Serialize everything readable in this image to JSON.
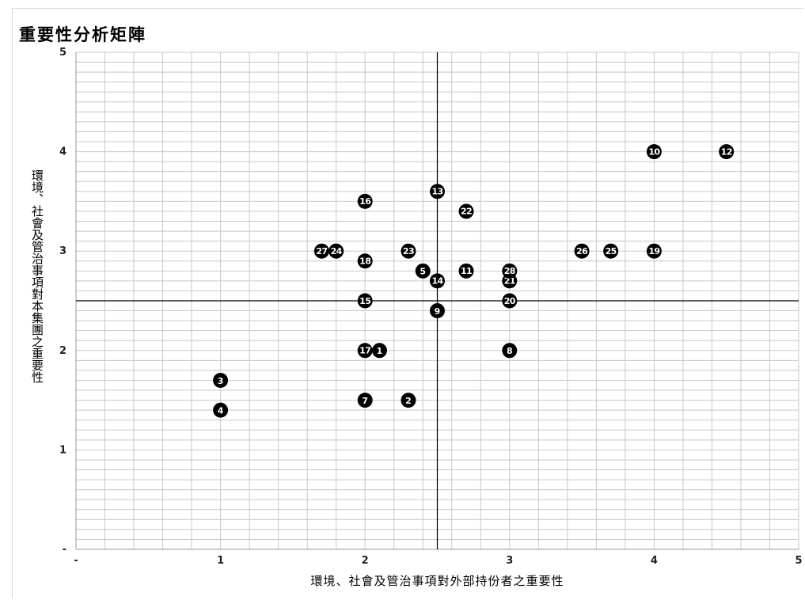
{
  "chart_data": {
    "type": "scatter",
    "title": "重要性分析矩陣",
    "xlabel": "環境、社會及管治事項對外部持份者之重要性",
    "ylabel": "環境、社會及管治事項對本集團之重要性",
    "xlim": [
      0,
      5
    ],
    "ylim": [
      0,
      5
    ],
    "x_ticks": [
      "-",
      "1",
      "2",
      "3",
      "4",
      "5"
    ],
    "y_ticks": [
      "-",
      "1",
      "2",
      "3",
      "4",
      "5"
    ],
    "grid": true,
    "reference_lines": {
      "x": 2.5,
      "y": 2.5
    },
    "marker_color": "#000000",
    "points": [
      {
        "label": "1",
        "x": 2.1,
        "y": 2.0
      },
      {
        "label": "2",
        "x": 2.3,
        "y": 1.5
      },
      {
        "label": "3",
        "x": 1.0,
        "y": 1.7
      },
      {
        "label": "4",
        "x": 1.0,
        "y": 1.4
      },
      {
        "label": "5",
        "x": 2.4,
        "y": 2.8
      },
      {
        "label": "7",
        "x": 2.0,
        "y": 1.5
      },
      {
        "label": "8",
        "x": 3.0,
        "y": 2.0
      },
      {
        "label": "9",
        "x": 2.5,
        "y": 2.4
      },
      {
        "label": "10",
        "x": 4.0,
        "y": 4.0
      },
      {
        "label": "11",
        "x": 2.7,
        "y": 2.8
      },
      {
        "label": "12",
        "x": 4.5,
        "y": 4.0
      },
      {
        "label": "13",
        "x": 2.5,
        "y": 3.6
      },
      {
        "label": "14",
        "x": 2.5,
        "y": 2.7
      },
      {
        "label": "15",
        "x": 2.0,
        "y": 2.5
      },
      {
        "label": "16",
        "x": 2.0,
        "y": 3.5
      },
      {
        "label": "17",
        "x": 2.0,
        "y": 2.0
      },
      {
        "label": "18",
        "x": 2.0,
        "y": 2.9
      },
      {
        "label": "19",
        "x": 4.0,
        "y": 3.0
      },
      {
        "label": "20",
        "x": 3.0,
        "y": 2.5
      },
      {
        "label": "21",
        "x": 3.0,
        "y": 2.7
      },
      {
        "label": "22",
        "x": 2.7,
        "y": 3.4
      },
      {
        "label": "23",
        "x": 2.3,
        "y": 3.0
      },
      {
        "label": "24",
        "x": 1.8,
        "y": 3.0
      },
      {
        "label": "25",
        "x": 3.7,
        "y": 3.0
      },
      {
        "label": "26",
        "x": 3.5,
        "y": 3.0
      },
      {
        "label": "27",
        "x": 1.7,
        "y": 3.0
      },
      {
        "label": "28",
        "x": 3.0,
        "y": 2.8
      }
    ]
  }
}
